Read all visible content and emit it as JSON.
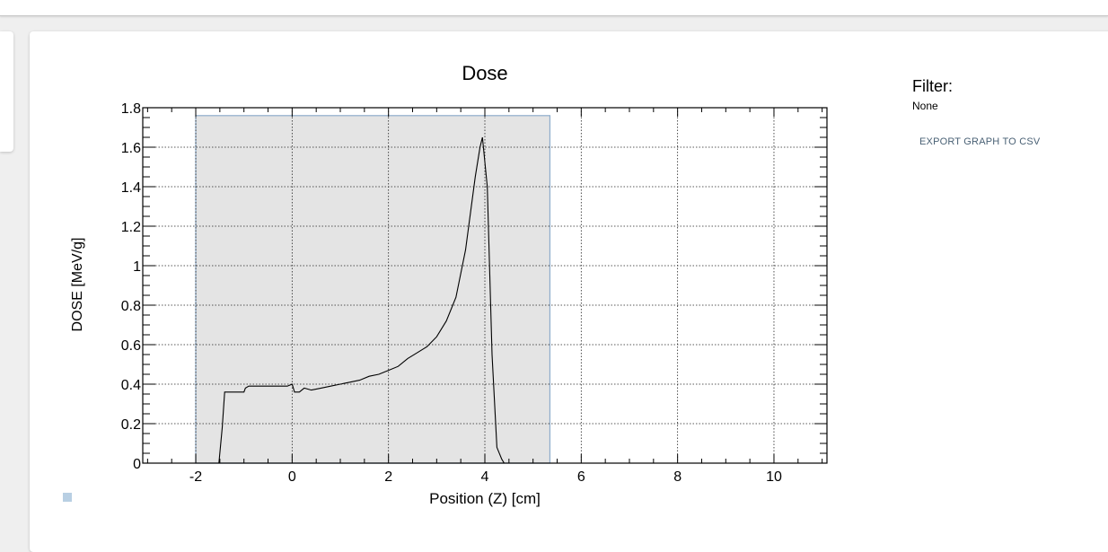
{
  "panel": {
    "filter_label": "Filter:",
    "filter_value": "None",
    "export_label": "EXPORT GRAPH TO CSV"
  },
  "colors": {
    "region_fill": "#e4e4e4",
    "region_stroke": "#8eaccc",
    "line": "#000000",
    "legend_swatch": "#b8cfe3"
  },
  "chart_data": {
    "type": "line",
    "title": "Dose",
    "xlabel": "Position (Z) [cm]",
    "ylabel": "DOSE [MeV/g]",
    "xlim": [
      -3.1,
      11.1
    ],
    "ylim": [
      0,
      1.8
    ],
    "xticks": [
      -2,
      0,
      2,
      4,
      6,
      8,
      10
    ],
    "yticks": [
      0,
      0.2,
      0.4,
      0.6,
      0.8,
      1,
      1.2,
      1.4,
      1.6,
      1.8
    ],
    "ytick_labels": [
      "0",
      "0.2",
      "0.4",
      "0.6",
      "0.8",
      "1",
      "1.2",
      "1.4",
      "1.6",
      "1.8"
    ],
    "grid": true,
    "region": {
      "x0": -2.0,
      "x1": 5.35,
      "y1": 1.76
    },
    "series": [
      {
        "x": [
          -1.52,
          -1.45,
          -1.4,
          -1.0,
          -0.97,
          -0.9,
          -0.1,
          0.0,
          0.05,
          0.15,
          0.25,
          0.4,
          0.6,
          0.8,
          1.0,
          1.2,
          1.4,
          1.6,
          1.8,
          2.0,
          2.2,
          2.4,
          2.6,
          2.8,
          3.0,
          3.2,
          3.4,
          3.6,
          3.8,
          3.9,
          3.95,
          4.05,
          4.15,
          4.25,
          4.35,
          4.4
        ],
        "y": [
          0,
          0.18,
          0.36,
          0.36,
          0.38,
          0.39,
          0.39,
          0.4,
          0.36,
          0.36,
          0.38,
          0.37,
          0.38,
          0.39,
          0.4,
          0.41,
          0.42,
          0.44,
          0.45,
          0.47,
          0.49,
          0.53,
          0.56,
          0.59,
          0.64,
          0.72,
          0.84,
          1.08,
          1.45,
          1.6,
          1.65,
          1.4,
          0.55,
          0.08,
          0.02,
          0
        ]
      }
    ]
  }
}
